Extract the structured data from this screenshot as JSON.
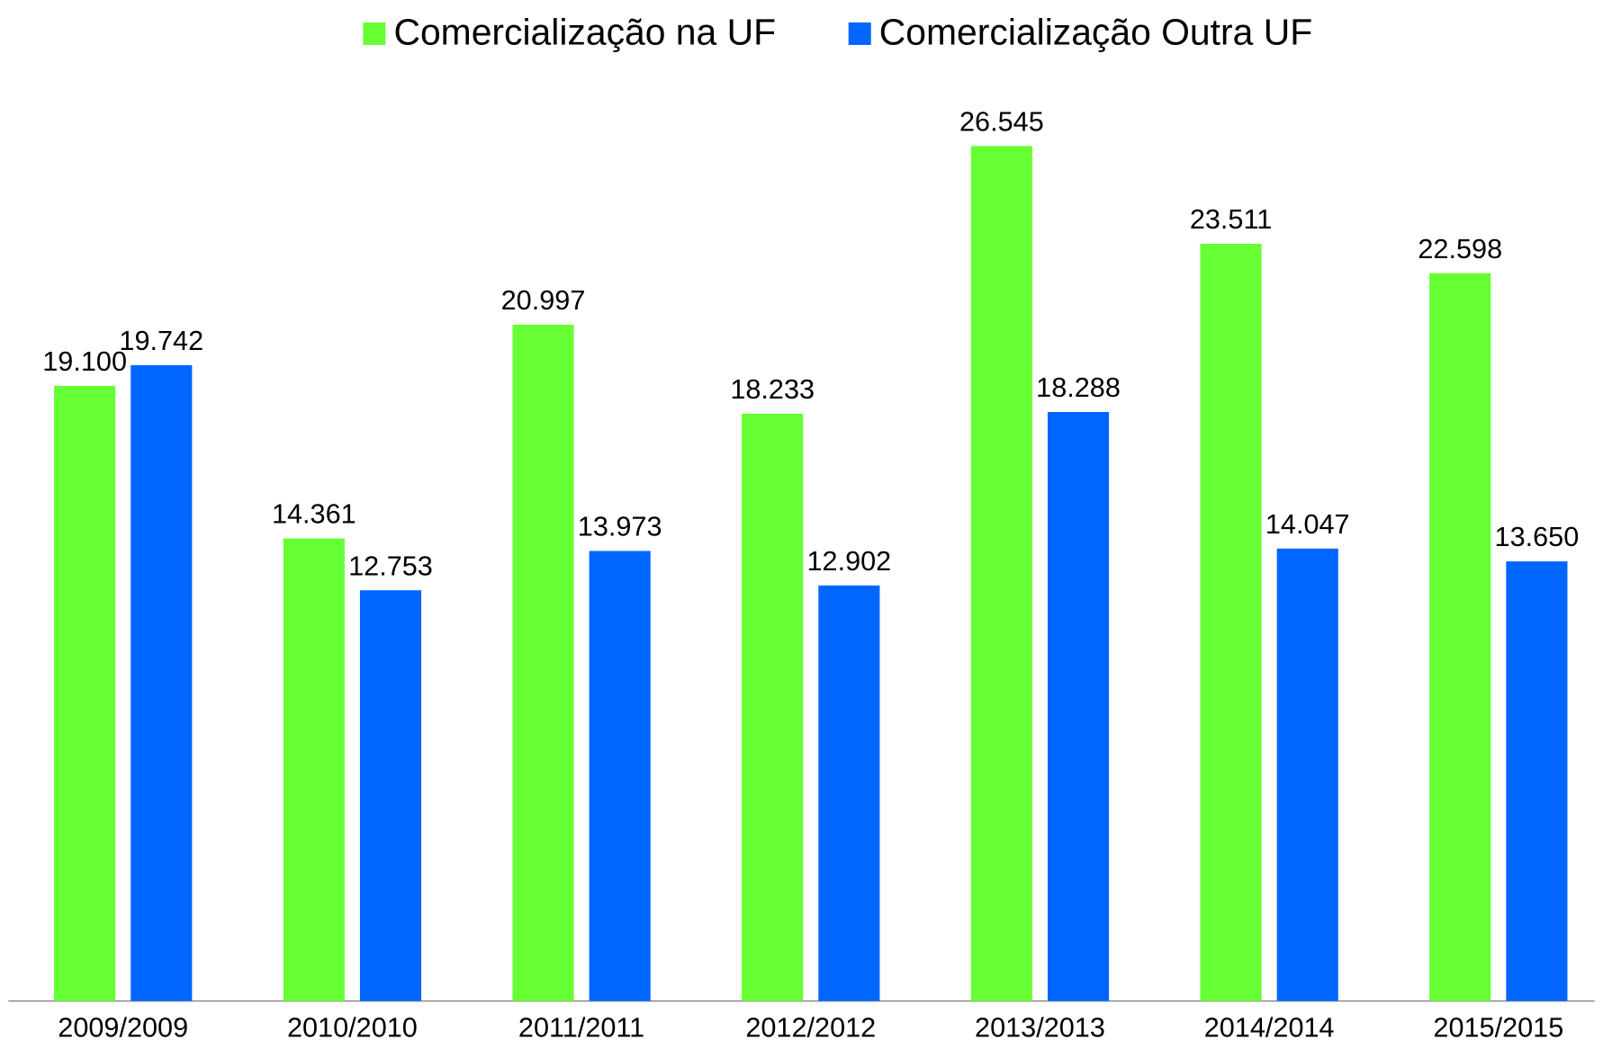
{
  "chart_data": {
    "type": "bar",
    "categories": [
      "2009/2009",
      "2010/2010",
      "2011/2011",
      "2012/2012",
      "2013/2013",
      "2014/2014",
      "2015/2015"
    ],
    "series": [
      {
        "name": "Comercialização na UF",
        "color": "#66ff33",
        "values": [
          19100,
          14361,
          20997,
          18233,
          26545,
          23511,
          22598
        ],
        "value_labels": [
          "19.100",
          "14.361",
          "20.997",
          "18.233",
          "26.545",
          "23.511",
          "22.598"
        ]
      },
      {
        "name": "Comercialização Outra UF",
        "color": "#0066ff",
        "values": [
          19742,
          12753,
          13973,
          12902,
          18288,
          14047,
          13650
        ],
        "value_labels": [
          "19.742",
          "12.753",
          "13.973",
          "12.902",
          "18.288",
          "14.047",
          "13.650"
        ]
      }
    ],
    "legend": "top",
    "grid": false
  }
}
